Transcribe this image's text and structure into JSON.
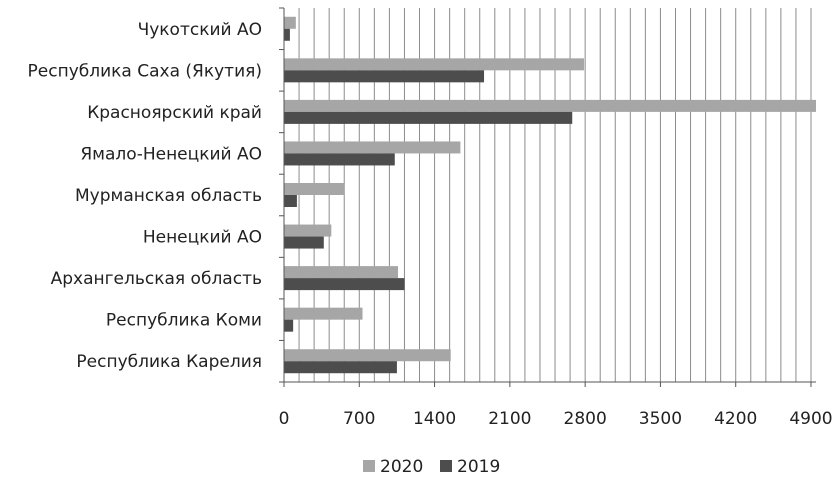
{
  "chart_data": {
    "type": "bar",
    "orientation": "horizontal",
    "categories": [
      "Чукотский АО",
      "Республика Саха (Якутия)",
      "Красноярский край",
      "Ямало-Ненецкий АО",
      "Мурманская область",
      "Ненецкий АО",
      "Архангельская область",
      "Республика Коми",
      "Республика Карелия"
    ],
    "series": [
      {
        "name": "2020",
        "color": "#a6a6a6",
        "values": [
          110,
          2790,
          5050,
          1640,
          560,
          440,
          1060,
          730,
          1550
        ]
      },
      {
        "name": "2019",
        "color": "#4d4d4d",
        "values": [
          55,
          1860,
          2680,
          1030,
          120,
          370,
          1120,
          85,
          1050
        ]
      }
    ],
    "xticks": [
      "0",
      "700",
      "1400",
      "2100",
      "2800",
      "3500",
      "4200",
      "4900"
    ],
    "xlim": [
      0,
      5000
    ],
    "grid": true,
    "legend_position": "bottom"
  }
}
